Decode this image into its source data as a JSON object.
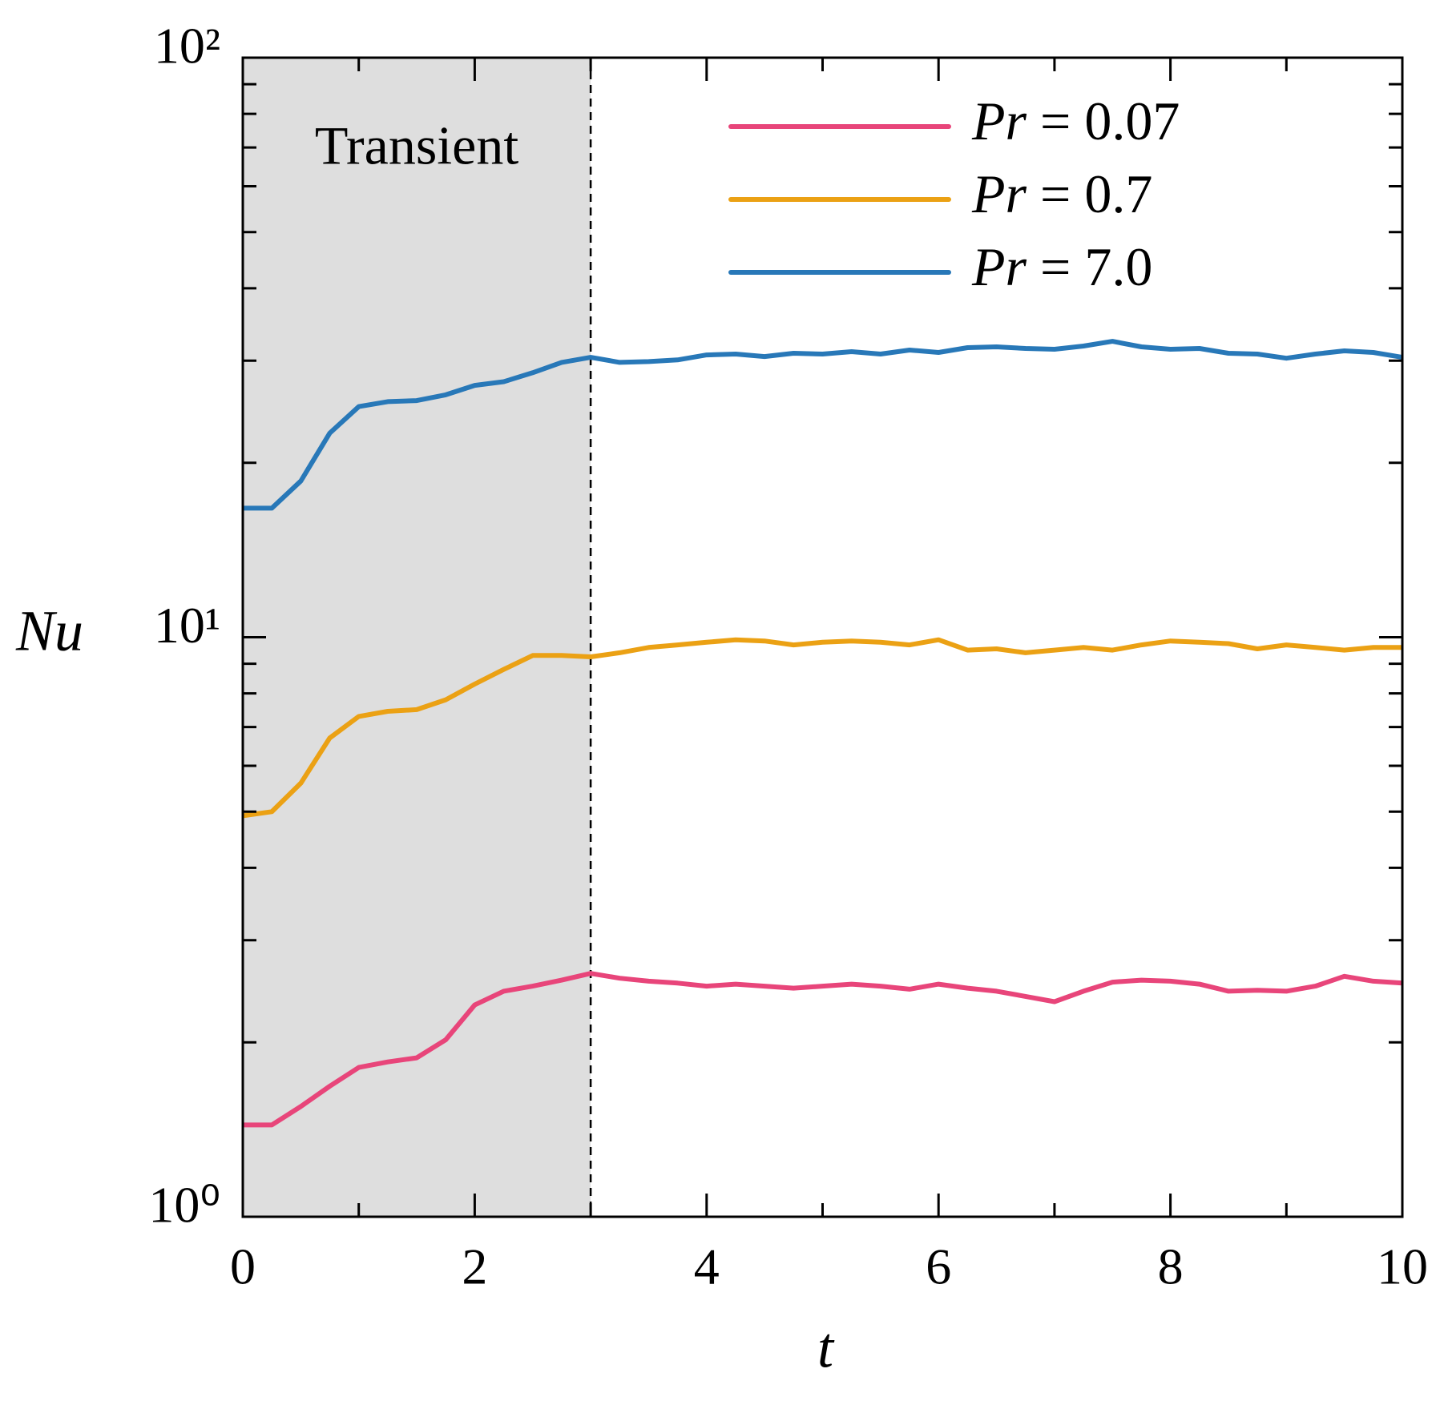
{
  "chart_data": {
    "type": "line",
    "x_label": "t",
    "y_label": "Nu",
    "x": [
      0,
      0.25,
      0.5,
      0.75,
      1,
      1.25,
      1.5,
      1.75,
      2,
      2.25,
      2.5,
      2.75,
      3,
      3.25,
      3.5,
      3.75,
      4,
      4.25,
      4.5,
      4.75,
      5,
      5.25,
      5.5,
      5.75,
      6,
      6.25,
      6.5,
      6.75,
      7,
      7.25,
      7.5,
      7.75,
      8,
      8.25,
      8.5,
      8.75,
      9,
      9.25,
      9.5,
      9.75,
      10
    ],
    "series": [
      {
        "name": "Pr = 0.07",
        "color": "#e8457a",
        "values": [
          1.44,
          1.44,
          1.55,
          1.68,
          1.81,
          1.85,
          1.88,
          2.02,
          2.32,
          2.45,
          2.5,
          2.56,
          2.63,
          2.58,
          2.55,
          2.53,
          2.5,
          2.52,
          2.5,
          2.48,
          2.5,
          2.52,
          2.5,
          2.47,
          2.52,
          2.48,
          2.45,
          2.4,
          2.35,
          2.45,
          2.54,
          2.56,
          2.55,
          2.52,
          2.45,
          2.46,
          2.45,
          2.5,
          2.6,
          2.55,
          2.53
        ]
      },
      {
        "name": "Pr = 0.7",
        "color": "#eba114",
        "values": [
          4.92,
          5.0,
          5.6,
          6.7,
          7.3,
          7.45,
          7.5,
          7.8,
          8.3,
          8.8,
          9.3,
          9.3,
          9.25,
          9.4,
          9.6,
          9.7,
          9.8,
          9.9,
          9.85,
          9.7,
          9.8,
          9.85,
          9.8,
          9.7,
          9.9,
          9.5,
          9.55,
          9.4,
          9.5,
          9.6,
          9.5,
          9.7,
          9.85,
          9.8,
          9.75,
          9.55,
          9.7,
          9.6,
          9.5,
          9.6,
          9.6
        ]
      },
      {
        "name": "Pr = 7.0",
        "color": "#2878b8",
        "values": [
          16.7,
          16.7,
          18.6,
          22.5,
          25.0,
          25.5,
          25.6,
          26.2,
          27.2,
          27.6,
          28.6,
          29.8,
          30.4,
          29.8,
          29.9,
          30.1,
          30.7,
          30.8,
          30.5,
          30.9,
          30.8,
          31.1,
          30.8,
          31.3,
          31.0,
          31.6,
          31.7,
          31.5,
          31.4,
          31.8,
          32.4,
          31.7,
          31.4,
          31.5,
          30.9,
          30.8,
          30.3,
          30.8,
          31.2,
          31.0,
          30.4
        ]
      }
    ],
    "xlim": [
      0,
      10
    ],
    "xticks": [
      0,
      2,
      4,
      6,
      8,
      10
    ],
    "xminorticks": [
      1,
      3,
      5,
      7,
      9
    ],
    "ylim": [
      1,
      100
    ],
    "yscale": "log",
    "yticks": [
      {
        "value": 1,
        "label": "10⁰"
      },
      {
        "value": 10,
        "label": "10¹"
      },
      {
        "value": 100,
        "label": "10²"
      }
    ],
    "yminorticks": [
      2,
      3,
      4,
      5,
      6,
      7,
      8,
      9,
      20,
      30,
      40,
      50,
      60,
      70,
      80,
      90
    ],
    "shade": {
      "xlim": [
        0,
        3
      ],
      "label": "Transient",
      "color": "#dedede"
    },
    "legend": "upper right"
  }
}
